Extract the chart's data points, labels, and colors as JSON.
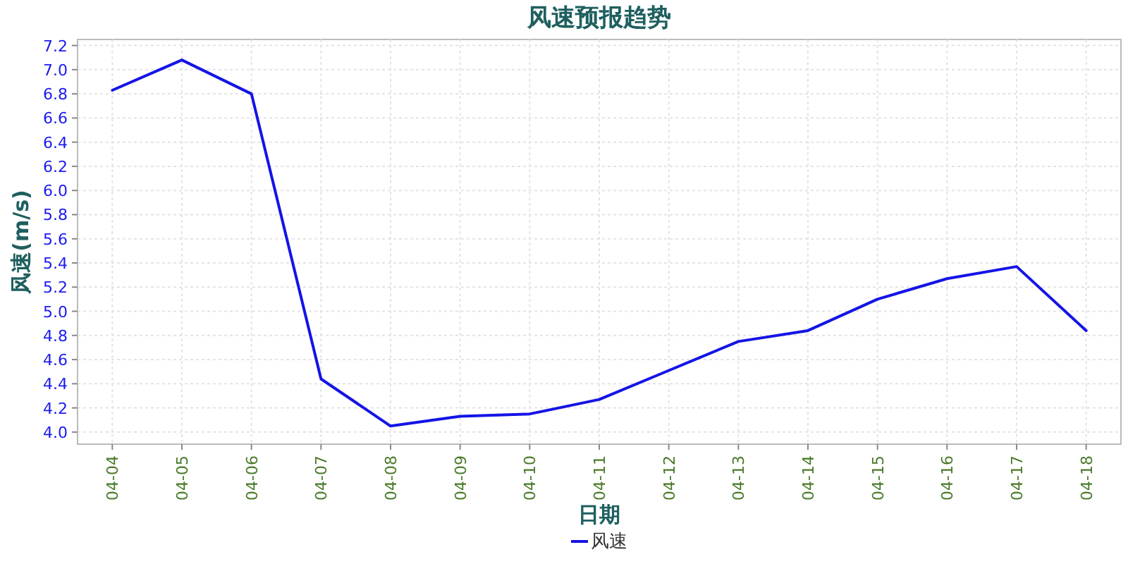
{
  "chart_data": {
    "type": "line",
    "title": "风速预报趋势",
    "xlabel": "日期",
    "ylabel": "风速(m/s)",
    "categories": [
      "04-04",
      "04-05",
      "04-06",
      "04-07",
      "04-08",
      "04-09",
      "04-10",
      "04-11",
      "04-12",
      "04-13",
      "04-14",
      "04-15",
      "04-16",
      "04-17",
      "04-18"
    ],
    "series": [
      {
        "name": "风速",
        "color": "#1414e6",
        "values": [
          6.83,
          7.08,
          6.8,
          4.44,
          4.05,
          4.13,
          4.15,
          4.27,
          4.51,
          4.75,
          4.84,
          5.1,
          5.27,
          5.37,
          4.84
        ]
      }
    ],
    "ylim": [
      3.9,
      7.25
    ],
    "yticks": [
      {
        "value": 4,
        "label": "4.0"
      },
      4.2,
      4.4,
      4.6,
      4.8,
      {
        "value": 5,
        "label": "5.0"
      },
      5.2,
      5.4,
      5.6,
      5.8,
      {
        "value": 6,
        "label": "6.0"
      },
      6.2,
      6.4,
      6.6,
      6.8,
      {
        "value": 7,
        "label": "7.0"
      },
      7.2
    ],
    "grid": true,
    "legend": "bottom",
    "marker": "none",
    "line_style": "solid"
  }
}
